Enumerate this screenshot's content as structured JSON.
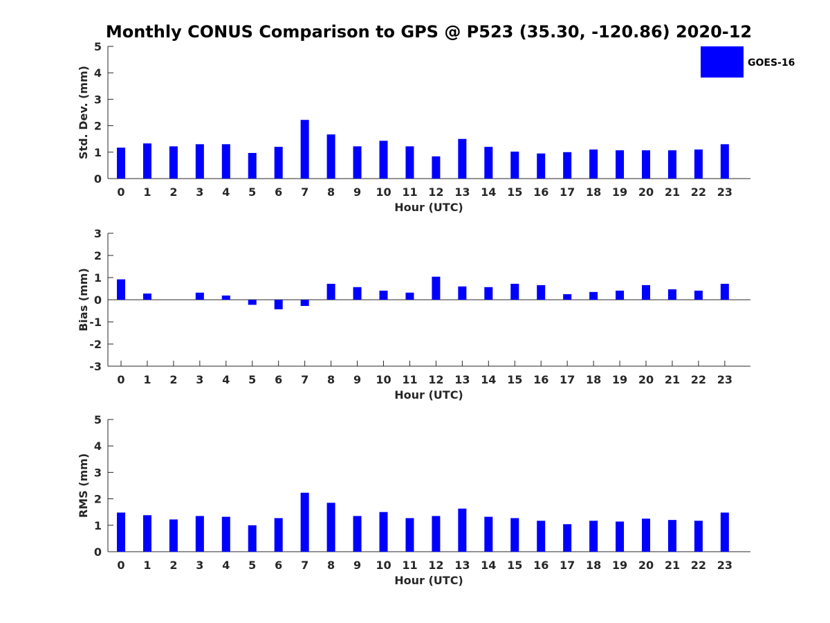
{
  "title": "Monthly CONUS Comparison to GPS @ P523 (35.30, -120.86) 2020-12",
  "legend": {
    "label": "GOES-16",
    "color": "#0000ff",
    "placement": "top-right"
  },
  "chart_data": [
    {
      "type": "bar",
      "xlabel": "Hour (UTC)",
      "ylabel": "Std. Dev. (mm)",
      "ylim": [
        0,
        5
      ],
      "yticks": [
        "0",
        "1",
        "2",
        "3",
        "4",
        "5"
      ],
      "categories": [
        "0",
        "1",
        "2",
        "3",
        "4",
        "5",
        "6",
        "7",
        "8",
        "9",
        "10",
        "11",
        "12",
        "13",
        "14",
        "15",
        "16",
        "17",
        "18",
        "19",
        "20",
        "21",
        "22",
        "23"
      ],
      "series": [
        {
          "name": "GOES-16",
          "values": [
            1.17,
            1.33,
            1.22,
            1.3,
            1.3,
            0.97,
            1.2,
            2.22,
            1.67,
            1.22,
            1.43,
            1.22,
            0.84,
            1.5,
            1.2,
            1.02,
            0.95,
            1.0,
            1.1,
            1.07,
            1.07,
            1.07,
            1.1,
            1.3
          ]
        }
      ]
    },
    {
      "type": "bar",
      "xlabel": "Hour (UTC)",
      "ylabel": "Bias (mm)",
      "ylim": [
        -3,
        3
      ],
      "yticks": [
        "-3",
        "-2",
        "-1",
        "0",
        "1",
        "2",
        "3"
      ],
      "categories": [
        "0",
        "1",
        "2",
        "3",
        "4",
        "5",
        "6",
        "7",
        "8",
        "9",
        "10",
        "11",
        "12",
        "13",
        "14",
        "15",
        "16",
        "17",
        "18",
        "19",
        "20",
        "21",
        "22",
        "23"
      ],
      "series": [
        {
          "name": "GOES-16",
          "values": [
            0.92,
            0.28,
            0.0,
            0.32,
            0.19,
            -0.23,
            -0.43,
            -0.28,
            0.72,
            0.57,
            0.41,
            0.32,
            1.04,
            0.6,
            0.57,
            0.72,
            0.66,
            0.25,
            0.35,
            0.41,
            0.66,
            0.47,
            0.41,
            0.72
          ]
        }
      ]
    },
    {
      "type": "bar",
      "xlabel": "Hour (UTC)",
      "ylabel": "RMS (mm)",
      "ylim": [
        0,
        5
      ],
      "yticks": [
        "0",
        "1",
        "2",
        "3",
        "4",
        "5"
      ],
      "categories": [
        "0",
        "1",
        "2",
        "3",
        "4",
        "5",
        "6",
        "7",
        "8",
        "9",
        "10",
        "11",
        "12",
        "13",
        "14",
        "15",
        "16",
        "17",
        "18",
        "19",
        "20",
        "21",
        "22",
        "23"
      ],
      "series": [
        {
          "name": "GOES-16",
          "values": [
            1.48,
            1.38,
            1.22,
            1.35,
            1.32,
            1.0,
            1.27,
            2.23,
            1.85,
            1.35,
            1.5,
            1.27,
            1.35,
            1.63,
            1.32,
            1.27,
            1.17,
            1.04,
            1.17,
            1.14,
            1.25,
            1.2,
            1.17,
            1.48
          ]
        }
      ]
    }
  ]
}
